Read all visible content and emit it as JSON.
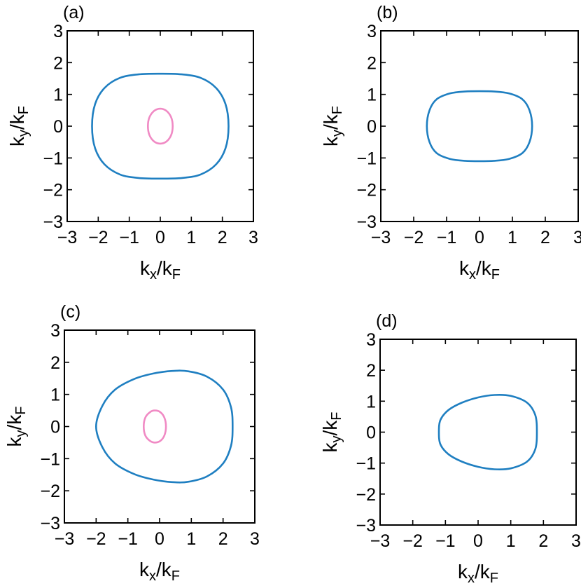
{
  "colors": {
    "outer": "#1f7fc1",
    "inner": "#f08ac4"
  },
  "chart_data": [
    {
      "type": "line",
      "panel_label": "(a)",
      "xlabel": "k_x/k_F",
      "ylabel": "k_y/k_F",
      "xlim": [
        -3,
        3
      ],
      "ylim": [
        -3,
        3
      ],
      "xticks": [
        "−3",
        "−2",
        "−1",
        "0",
        "1",
        "2",
        "3"
      ],
      "yticks": [
        "−3",
        "−2",
        "−1",
        "0",
        "1",
        "2",
        "3"
      ],
      "series": [
        {
          "role": "outer",
          "color": "#1f7fc1",
          "x": [
            2.2,
            2.1,
            1.8,
            1.3,
            0.7,
            0,
            -0.7,
            -1.3,
            -1.8,
            -2.1,
            -2.2,
            -2.1,
            -1.8,
            -1.3,
            -0.7,
            0,
            0.7,
            1.3,
            1.8,
            2.1,
            2.2
          ],
          "y": [
            0,
            0.7,
            1.2,
            1.52,
            1.63,
            1.65,
            1.63,
            1.52,
            1.2,
            0.7,
            0,
            -0.7,
            -1.2,
            -1.52,
            -1.63,
            -1.65,
            -1.63,
            -1.52,
            -1.2,
            -0.7,
            0
          ]
        },
        {
          "role": "inner",
          "color": "#f08ac4",
          "x": [
            0.4,
            0.35,
            0.2,
            0,
            -0.2,
            -0.35,
            -0.4,
            -0.35,
            -0.2,
            0,
            0.2,
            0.35,
            0.4
          ],
          "y": [
            0,
            0.28,
            0.48,
            0.55,
            0.48,
            0.28,
            0,
            -0.28,
            -0.48,
            -0.55,
            -0.48,
            -0.28,
            0
          ]
        }
      ]
    },
    {
      "type": "line",
      "panel_label": "(b)",
      "xlabel": "k_x/k_F",
      "ylabel": "k_y/k_F",
      "xlim": [
        -3,
        3
      ],
      "ylim": [
        -3,
        3
      ],
      "xticks": [
        "−3",
        "−2",
        "−1",
        "0",
        "1",
        "2",
        "3"
      ],
      "yticks": [
        "−3",
        "−2",
        "−1",
        "0",
        "1",
        "2",
        "3"
      ],
      "series": [
        {
          "role": "outer",
          "color": "#1f7fc1",
          "x": [
            1.6,
            1.52,
            1.3,
            0.9,
            0.45,
            0,
            -0.45,
            -0.9,
            -1.3,
            -1.52,
            -1.6,
            -1.52,
            -1.3,
            -0.9,
            -0.45,
            0,
            0.45,
            0.9,
            1.3,
            1.52,
            1.6
          ],
          "y": [
            0,
            0.5,
            0.85,
            1.03,
            1.09,
            1.1,
            1.09,
            1.03,
            0.85,
            0.5,
            0,
            -0.5,
            -0.85,
            -1.03,
            -1.09,
            -1.1,
            -1.09,
            -1.03,
            -0.85,
            -0.5,
            0
          ]
        }
      ]
    },
    {
      "type": "line",
      "panel_label": "(c)",
      "xlabel": "k_x/k_F",
      "ylabel": "k_y/k_F",
      "xlim": [
        -3,
        3
      ],
      "ylim": [
        -3,
        3
      ],
      "xticks": [
        "−3",
        "−2",
        "−1",
        "0",
        "1",
        "2",
        "3"
      ],
      "yticks": [
        "−3",
        "−2",
        "−1",
        "0",
        "1",
        "2",
        "3"
      ],
      "series": [
        {
          "role": "outer",
          "color": "#1f7fc1",
          "x": [
            2.3,
            2.25,
            2.0,
            1.5,
            0.9,
            0.4,
            -0.2,
            -0.8,
            -1.4,
            -1.8,
            -2.0,
            -1.8,
            -1.4,
            -0.8,
            -0.2,
            0.4,
            0.9,
            1.5,
            2.0,
            2.25,
            2.3
          ],
          "y": [
            0,
            0.6,
            1.15,
            1.55,
            1.72,
            1.73,
            1.65,
            1.48,
            1.15,
            0.65,
            0,
            -0.65,
            -1.15,
            -1.48,
            -1.65,
            -1.73,
            -1.72,
            -1.55,
            -1.15,
            -0.6,
            0
          ]
        },
        {
          "role": "inner",
          "color": "#f08ac4",
          "x": [
            0.2,
            0.15,
            0.02,
            -0.15,
            -0.3,
            -0.45,
            -0.5,
            -0.45,
            -0.3,
            -0.15,
            0.02,
            0.15,
            0.2
          ],
          "y": [
            0,
            0.28,
            0.45,
            0.5,
            0.45,
            0.28,
            0,
            -0.28,
            -0.45,
            -0.5,
            -0.45,
            -0.28,
            0
          ]
        }
      ]
    },
    {
      "type": "line",
      "panel_label": "(d)",
      "xlabel": "k_x/k_F",
      "ylabel": "k_y/k_F",
      "xlim": [
        -3,
        3
      ],
      "ylim": [
        -3,
        3
      ],
      "xticks": [
        "−3",
        "−2",
        "−1",
        "0",
        "1",
        "2",
        "3"
      ],
      "yticks": [
        "−3",
        "−2",
        "−1",
        "0",
        "1",
        "2",
        "3"
      ],
      "series": [
        {
          "role": "outer",
          "color": "#1f7fc1",
          "x": [
            1.8,
            1.75,
            1.5,
            1.0,
            0.5,
            0,
            -0.5,
            -0.9,
            -1.15,
            -1.2,
            -1.15,
            -0.9,
            -0.5,
            0,
            0.5,
            1.0,
            1.5,
            1.75,
            1.8
          ],
          "y": [
            0,
            0.55,
            0.95,
            1.17,
            1.2,
            1.12,
            0.95,
            0.72,
            0.4,
            0,
            -0.4,
            -0.72,
            -0.95,
            -1.12,
            -1.2,
            -1.17,
            -0.95,
            -0.55,
            0
          ]
        }
      ]
    }
  ]
}
